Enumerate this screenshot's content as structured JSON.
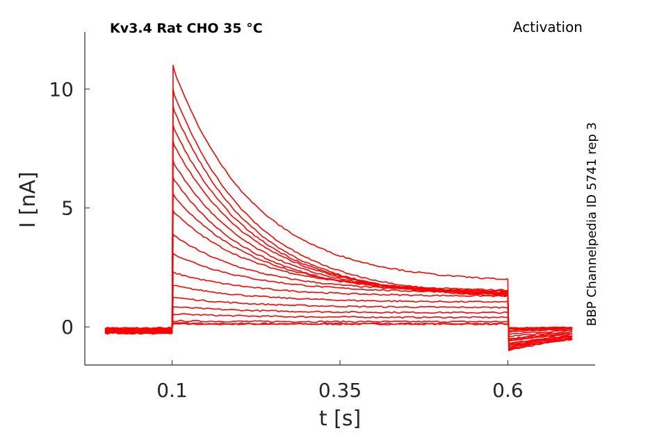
{
  "chart_data": {
    "type": "line",
    "title": "Kv3.4  Rat  CHO  35 °C",
    "protocol_label": "Activation",
    "side_note": "BBP Channelpedia ID 5741 rep 3",
    "xlabel": "t [s]",
    "ylabel": "I [nA]",
    "xlim": [
      -0.03,
      0.73
    ],
    "ylim": [
      -1.6,
      12.4
    ],
    "xticks": [
      0.1,
      0.35,
      0.6
    ],
    "xtick_labels": [
      "0.1",
      "0.35",
      "0.6"
    ],
    "yticks": [
      0,
      5,
      10
    ],
    "ytick_labels": [
      "0",
      "5",
      "10"
    ],
    "grid": false,
    "line_color": "#ff0000",
    "stimulus_on": 0.1,
    "stimulus_off": 0.6,
    "series_end": 0.7,
    "series": [
      {
        "peak": 0.12,
        "end": 0.12,
        "tail": -0.05
      },
      {
        "peak": 0.15,
        "end": 0.13,
        "tail": -0.05
      },
      {
        "peak": 0.25,
        "end": 0.22,
        "tail": -0.06
      },
      {
        "peak": 0.55,
        "end": 0.4,
        "tail": -0.08
      },
      {
        "peak": 0.85,
        "end": 0.6,
        "tail": -0.1
      },
      {
        "peak": 1.25,
        "end": 0.82,
        "tail": -0.15
      },
      {
        "peak": 1.75,
        "end": 1.05,
        "tail": -0.2
      },
      {
        "peak": 2.3,
        "end": 1.3,
        "tail": -0.3
      },
      {
        "peak": 3.1,
        "end": 1.45,
        "tail": -0.4
      },
      {
        "peak": 3.9,
        "end": 1.5,
        "tail": -0.5
      },
      {
        "peak": 4.9,
        "end": 1.55,
        "tail": -0.55
      },
      {
        "peak": 5.6,
        "end": 1.5,
        "tail": -0.6
      },
      {
        "peak": 6.3,
        "end": 1.4,
        "tail": -0.7
      },
      {
        "peak": 7.0,
        "end": 1.4,
        "tail": -0.75
      },
      {
        "peak": 7.8,
        "end": 1.4,
        "tail": -0.8
      },
      {
        "peak": 8.5,
        "end": 1.35,
        "tail": -0.85
      },
      {
        "peak": 9.3,
        "end": 1.3,
        "tail": -0.9
      },
      {
        "peak": 10.0,
        "end": 1.4,
        "tail": -0.95
      },
      {
        "peak": 11.0,
        "end": 2.0,
        "tail": -1.0
      }
    ]
  }
}
